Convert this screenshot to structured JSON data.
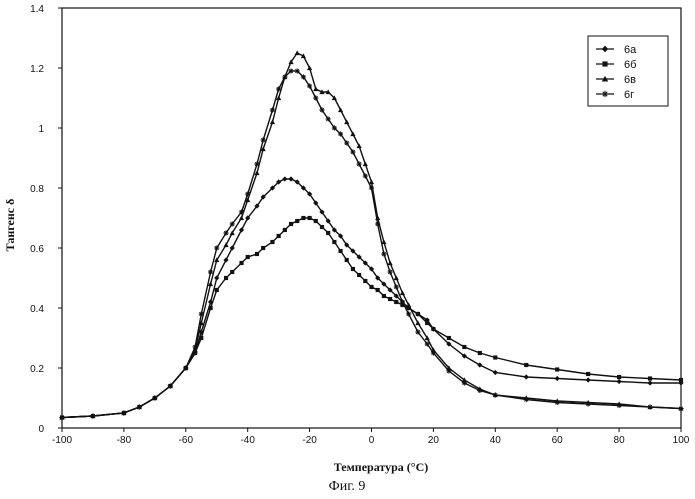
{
  "chart_data": {
    "type": "line",
    "title": "",
    "xlabel": "Температура (°С)",
    "ylabel": "Тангенс δ",
    "caption": "Фиг. 9",
    "xlim": [
      -100,
      100
    ],
    "ylim": [
      0,
      1.4
    ],
    "xticks": [
      -100,
      -80,
      -60,
      -40,
      -20,
      0,
      20,
      40,
      60,
      80,
      100
    ],
    "xtick_labels": [
      "-100",
      "-80",
      "-60",
      "-40",
      "-20",
      "0",
      "20",
      "40",
      "60",
      "80",
      "100"
    ],
    "yticks": [
      0,
      0.2,
      0.4,
      0.6,
      0.8,
      1,
      1.2,
      1.4
    ],
    "ytick_labels": [
      "0",
      "0.2",
      "0.4",
      "0.6",
      "0.8",
      "1",
      "1.2",
      "1.4"
    ],
    "grid": false,
    "legend_position": "top-right",
    "series": [
      {
        "name": "6а",
        "marker": "diamond",
        "x": [
          -100,
          -90,
          -80,
          -75,
          -70,
          -65,
          -60,
          -57,
          -55,
          -52,
          -50,
          -47,
          -45,
          -42,
          -40,
          -37,
          -35,
          -32,
          -30,
          -28,
          -26,
          -24,
          -22,
          -20,
          -18,
          -16,
          -14,
          -12,
          -10,
          -8,
          -6,
          -4,
          -2,
          0,
          2,
          4,
          6,
          8,
          10,
          12,
          15,
          18,
          20,
          25,
          30,
          35,
          40,
          50,
          60,
          70,
          80,
          90,
          100
        ],
        "y": [
          0.035,
          0.04,
          0.05,
          0.07,
          0.1,
          0.14,
          0.2,
          0.25,
          0.32,
          0.42,
          0.5,
          0.56,
          0.6,
          0.66,
          0.7,
          0.74,
          0.77,
          0.8,
          0.82,
          0.83,
          0.83,
          0.82,
          0.8,
          0.78,
          0.75,
          0.72,
          0.69,
          0.66,
          0.64,
          0.61,
          0.59,
          0.57,
          0.55,
          0.53,
          0.5,
          0.48,
          0.46,
          0.44,
          0.42,
          0.4,
          0.38,
          0.36,
          0.33,
          0.28,
          0.24,
          0.21,
          0.185,
          0.17,
          0.165,
          0.16,
          0.155,
          0.15,
          0.15
        ]
      },
      {
        "name": "6б",
        "marker": "square",
        "x": [
          -100,
          -90,
          -80,
          -75,
          -70,
          -65,
          -60,
          -57,
          -55,
          -52,
          -50,
          -47,
          -45,
          -42,
          -40,
          -37,
          -35,
          -32,
          -30,
          -28,
          -26,
          -24,
          -22,
          -20,
          -18,
          -16,
          -14,
          -12,
          -10,
          -8,
          -6,
          -4,
          -2,
          0,
          2,
          4,
          6,
          8,
          10,
          12,
          15,
          18,
          20,
          25,
          30,
          35,
          40,
          50,
          60,
          70,
          80,
          90,
          100
        ],
        "y": [
          0.035,
          0.04,
          0.05,
          0.07,
          0.1,
          0.14,
          0.2,
          0.25,
          0.3,
          0.4,
          0.46,
          0.5,
          0.52,
          0.55,
          0.57,
          0.58,
          0.6,
          0.62,
          0.64,
          0.66,
          0.68,
          0.69,
          0.7,
          0.7,
          0.69,
          0.67,
          0.65,
          0.62,
          0.59,
          0.56,
          0.53,
          0.51,
          0.49,
          0.47,
          0.46,
          0.44,
          0.43,
          0.42,
          0.41,
          0.4,
          0.38,
          0.35,
          0.33,
          0.3,
          0.27,
          0.25,
          0.235,
          0.21,
          0.195,
          0.18,
          0.17,
          0.165,
          0.16
        ]
      },
      {
        "name": "6в",
        "marker": "triangle",
        "x": [
          -100,
          -90,
          -80,
          -75,
          -70,
          -65,
          -60,
          -57,
          -55,
          -52,
          -50,
          -47,
          -45,
          -42,
          -40,
          -37,
          -35,
          -32,
          -30,
          -28,
          -26,
          -24,
          -22,
          -20,
          -18,
          -16,
          -14,
          -12,
          -10,
          -8,
          -6,
          -4,
          -2,
          0,
          2,
          4,
          6,
          8,
          10,
          12,
          15,
          18,
          20,
          25,
          30,
          35,
          40,
          50,
          60,
          70,
          80,
          90,
          100
        ],
        "y": [
          0.035,
          0.04,
          0.05,
          0.07,
          0.1,
          0.14,
          0.2,
          0.26,
          0.35,
          0.48,
          0.56,
          0.61,
          0.65,
          0.7,
          0.76,
          0.85,
          0.93,
          1.02,
          1.1,
          1.17,
          1.22,
          1.25,
          1.24,
          1.2,
          1.13,
          1.12,
          1.12,
          1.1,
          1.06,
          1.02,
          0.98,
          0.94,
          0.88,
          0.82,
          0.7,
          0.62,
          0.55,
          0.5,
          0.45,
          0.41,
          0.35,
          0.3,
          0.26,
          0.2,
          0.16,
          0.13,
          0.11,
          0.1,
          0.09,
          0.085,
          0.08,
          0.07,
          0.065
        ]
      },
      {
        "name": "6г",
        "marker": "star",
        "x": [
          -100,
          -90,
          -80,
          -75,
          -70,
          -65,
          -60,
          -57,
          -55,
          -52,
          -50,
          -47,
          -45,
          -42,
          -40,
          -37,
          -35,
          -32,
          -30,
          -28,
          -26,
          -24,
          -22,
          -20,
          -18,
          -16,
          -14,
          -12,
          -10,
          -8,
          -6,
          -4,
          -2,
          0,
          2,
          4,
          6,
          8,
          10,
          12,
          15,
          18,
          20,
          25,
          30,
          35,
          40,
          50,
          60,
          70,
          80,
          90,
          100
        ],
        "y": [
          0.035,
          0.04,
          0.05,
          0.07,
          0.1,
          0.14,
          0.2,
          0.27,
          0.38,
          0.52,
          0.6,
          0.65,
          0.68,
          0.72,
          0.78,
          0.88,
          0.96,
          1.06,
          1.13,
          1.17,
          1.19,
          1.19,
          1.17,
          1.14,
          1.1,
          1.06,
          1.03,
          1.0,
          0.98,
          0.95,
          0.92,
          0.88,
          0.84,
          0.8,
          0.68,
          0.58,
          0.52,
          0.47,
          0.42,
          0.38,
          0.32,
          0.28,
          0.25,
          0.19,
          0.15,
          0.125,
          0.11,
          0.095,
          0.085,
          0.08,
          0.075,
          0.07,
          0.065
        ]
      }
    ]
  }
}
